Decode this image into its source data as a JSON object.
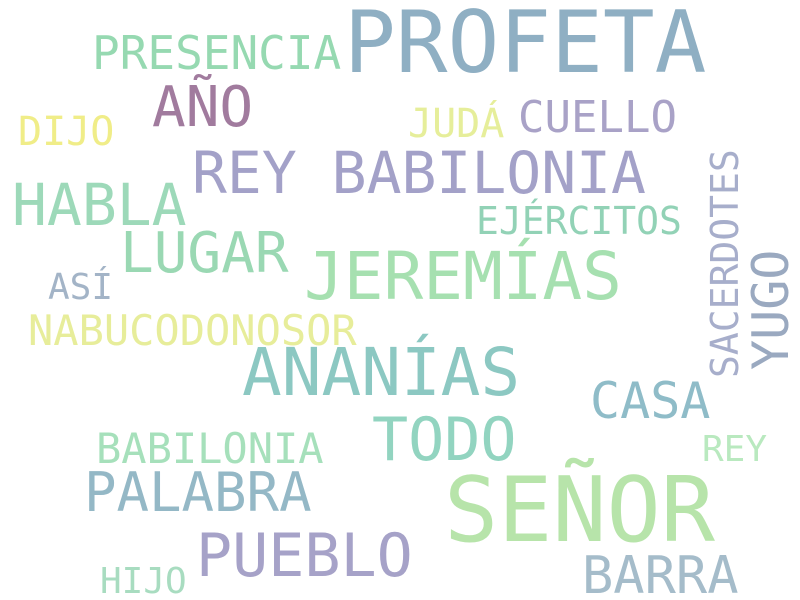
{
  "words": {
    "profeta": "PROFETA",
    "presencia": "PRESENCIA",
    "ano": "AÑO",
    "dijo": "DIJO",
    "juda": "JUDÁ",
    "cuello": "CUELLO",
    "rey_babilonia": "REY BABILONIA",
    "habla": "HABLA",
    "ejercitos": "EJÉRCITOS",
    "sacerdotes": "SACERDOTES",
    "lugar": "LUGAR",
    "jeremias": "JEREMÍAS",
    "yugo": "YUGO",
    "asi": "ASÍ",
    "nabucodonosor": "NABUCODONOSOR",
    "ananias": "ANANÍAS",
    "casa": "CASA",
    "todo": "TODO",
    "babilonia": "BABILONIA",
    "rey": "REY",
    "palabra": "PALABRA",
    "senor": "SEÑOR",
    "pueblo": "PUEBLO",
    "hijo": "HIJO",
    "barra": "BARRA"
  },
  "colors": {
    "background": "#ffffff",
    "slate_blue": "#8fafc3",
    "mint": "#96d9b1",
    "mauve": "#a17b9e",
    "yellow": "#f0ed88",
    "lavender": "#a3a1c8",
    "teal": "#8cc8c2",
    "light_green": "#b7e4aa"
  }
}
